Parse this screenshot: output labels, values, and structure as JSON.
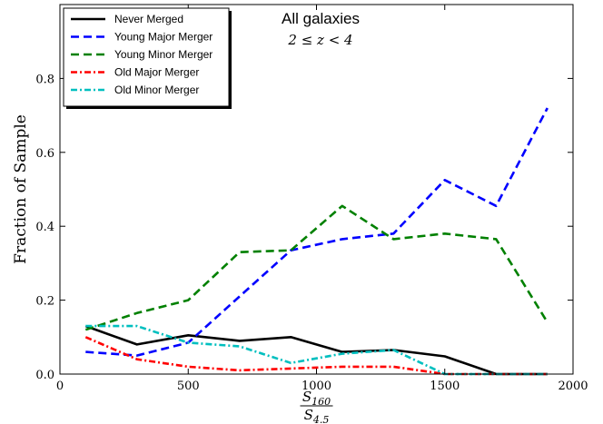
{
  "chart_data": {
    "type": "line",
    "title": "",
    "annotation": {
      "title": "All galaxies",
      "subtitle": "2 ≤ z < 4"
    },
    "xlabel": {
      "numerator": "S",
      "numerator_sub": "160",
      "denominator": "S",
      "denominator_sub": "4.5"
    },
    "ylabel": "Fraction of Sample",
    "xlim": [
      0,
      2000
    ],
    "ylim": [
      0,
      1.0
    ],
    "xticks": [
      0,
      500,
      1000,
      1500,
      2000
    ],
    "yticks": [
      0.0,
      0.2,
      0.4,
      0.6,
      0.8
    ],
    "ytick_labels": [
      "0.0",
      "0.2",
      "0.4",
      "0.6",
      "0.8"
    ],
    "x": [
      100,
      300,
      500,
      700,
      900,
      1100,
      1300,
      1500,
      1700,
      1900
    ],
    "grid": false,
    "legend_position": "top-left",
    "series": [
      {
        "name": "Never Merged",
        "color": "#000000",
        "dash": "solid",
        "values": [
          0.13,
          0.08,
          0.105,
          0.09,
          0.1,
          0.06,
          0.065,
          0.048,
          0.0,
          0.0
        ]
      },
      {
        "name": "Young Major Merger",
        "color": "#0000ff",
        "dash": "dashed",
        "values": [
          0.06,
          0.05,
          0.085,
          0.21,
          0.335,
          0.365,
          0.38,
          0.525,
          0.455,
          0.72
        ]
      },
      {
        "name": "Young Minor Merger",
        "color": "#008000",
        "dash": "dashed",
        "values": [
          0.12,
          0.165,
          0.2,
          0.33,
          0.335,
          0.455,
          0.365,
          0.38,
          0.365,
          0.14
        ]
      },
      {
        "name": "Old Major Merger",
        "color": "#ff0000",
        "dash": "dashdot",
        "values": [
          0.1,
          0.04,
          0.02,
          0.01,
          0.015,
          0.02,
          0.02,
          0.0,
          0.0,
          0.0
        ]
      },
      {
        "name": "Old Minor Merger",
        "color": "#00bfbf",
        "dash": "dashdot",
        "values": [
          0.13,
          0.13,
          0.085,
          0.075,
          0.03,
          0.055,
          0.065,
          0.0,
          0.0,
          0.0
        ]
      }
    ]
  }
}
